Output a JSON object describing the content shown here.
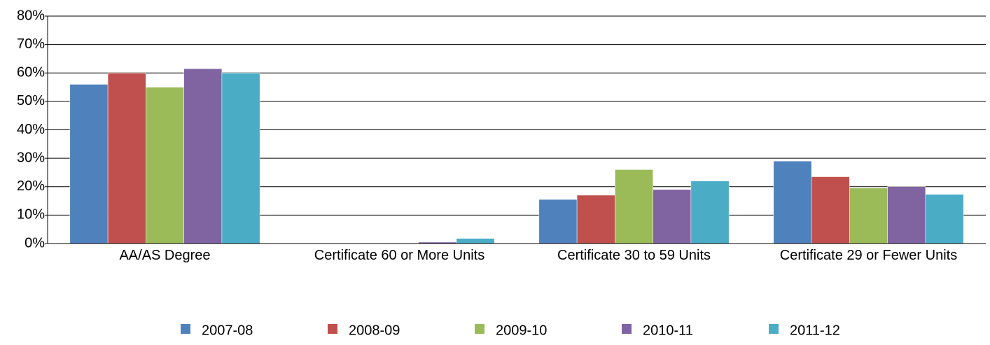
{
  "chart_data": {
    "type": "bar",
    "categories": [
      "AA/AS Degree",
      "Certificate 60 or More Units",
      "Certificate 30 to 59 Units",
      "Certificate 29 or Fewer Units"
    ],
    "series": [
      {
        "name": "2007-08",
        "color": "#4f81bd",
        "values": [
          56,
          0,
          15.5,
          29
        ]
      },
      {
        "name": "2008-09",
        "color": "#c0504d",
        "values": [
          60,
          0,
          17,
          23.5
        ]
      },
      {
        "name": "2009-10",
        "color": "#9bbb59",
        "values": [
          55,
          0.2,
          26,
          19.5
        ]
      },
      {
        "name": "2010-11",
        "color": "#8064a2",
        "values": [
          61.5,
          0.5,
          19,
          20
        ]
      },
      {
        "name": "2011-12",
        "color": "#4bacc6",
        "values": [
          60,
          1.8,
          22,
          17.3
        ]
      }
    ],
    "ylim": [
      0,
      80
    ],
    "yticks": [
      {
        "value": 0,
        "label": "0%"
      },
      {
        "value": 10,
        "label": "10%"
      },
      {
        "value": 20,
        "label": "20%"
      },
      {
        "value": 30,
        "label": "30%"
      },
      {
        "value": 40,
        "label": "40%"
      },
      {
        "value": 50,
        "label": "50%"
      },
      {
        "value": 60,
        "label": "60%"
      },
      {
        "value": 70,
        "label": "70%"
      },
      {
        "value": 80,
        "label": "80%"
      }
    ],
    "grid": true,
    "legend": "bottom"
  }
}
